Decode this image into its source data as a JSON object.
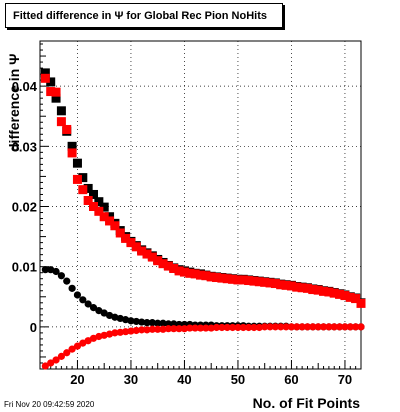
{
  "footer_timestamp": "Fri Nov 20 09:42:59 2020",
  "chart_data": {
    "type": "scatter",
    "title": "Fitted difference in  Ψ  for Global Rec Pion NoHits",
    "xlabel": "No. of Fit Points",
    "ylabel": "difference in  Ψ",
    "xlim": [
      13,
      73
    ],
    "ylim": [
      -0.007,
      0.0475
    ],
    "x_ticks": [
      "20",
      "30",
      "40",
      "50",
      "60",
      "70"
    ],
    "y_ticks": [
      "0",
      "0.01",
      "0.02",
      "0.03",
      "0.04"
    ],
    "grid": true,
    "x": [
      14,
      15,
      16,
      17,
      18,
      19,
      20,
      21,
      22,
      23,
      24,
      25,
      26,
      27,
      28,
      29,
      30,
      31,
      32,
      33,
      34,
      35,
      36,
      37,
      38,
      39,
      40,
      41,
      42,
      43,
      44,
      45,
      46,
      47,
      48,
      49,
      50,
      51,
      52,
      53,
      54,
      55,
      56,
      57,
      58,
      59,
      60,
      61,
      62,
      63,
      64,
      65,
      66,
      67,
      68,
      69,
      70,
      71,
      72,
      73
    ],
    "series": [
      {
        "color": "#000000",
        "values": [
          0.0422,
          0.0407,
          0.038,
          0.0359,
          0.0325,
          0.03,
          0.0272,
          0.0248,
          0.023,
          0.022,
          0.0208,
          0.0199,
          0.0183,
          0.0172,
          0.016,
          0.015,
          0.0142,
          0.0135,
          0.0128,
          0.0123,
          0.0118,
          0.0112,
          0.0107,
          0.0102,
          0.0098,
          0.0095,
          0.0093,
          0.0091,
          0.0089,
          0.0088,
          0.0086,
          0.0084,
          0.0083,
          0.0082,
          0.0081,
          0.008,
          0.0079,
          0.0079,
          0.0078,
          0.0077,
          0.0076,
          0.0075,
          0.0074,
          0.0073,
          0.0071,
          0.007,
          0.0069,
          0.0067,
          0.0066,
          0.0065,
          0.0063,
          0.0062,
          0.006,
          0.0059,
          0.0057,
          0.0055,
          0.0053,
          0.005,
          0.0048,
          0.004
        ]
      },
      {
        "color": "#ff0000",
        "values": [
          0.0413,
          0.0391,
          0.039,
          0.0341,
          0.0328,
          0.0289,
          0.0245,
          0.0228,
          0.021,
          0.02,
          0.0192,
          0.0183,
          0.0176,
          0.0168,
          0.0156,
          0.0147,
          0.014,
          0.0133,
          0.0126,
          0.0121,
          0.0116,
          0.011,
          0.0105,
          0.0101,
          0.0097,
          0.0093,
          0.0091,
          0.0089,
          0.0088,
          0.0086,
          0.0085,
          0.0083,
          0.0082,
          0.0081,
          0.008,
          0.0079,
          0.0078,
          0.0078,
          0.0077,
          0.0076,
          0.0075,
          0.0074,
          0.0073,
          0.0072,
          0.007,
          0.0069,
          0.0068,
          0.0066,
          0.0065,
          0.0064,
          0.0062,
          0.0061,
          0.0059,
          0.0058,
          0.0056,
          0.0054,
          0.0052,
          0.0049,
          0.0047,
          0.0039
        ]
      },
      {
        "color": "#000000",
        "values": [
          0.0095,
          0.0095,
          0.0092,
          0.0085,
          0.0076,
          0.0064,
          0.0053,
          0.0045,
          0.0038,
          0.0032,
          0.0027,
          0.0023,
          0.0019,
          0.0016,
          0.0014,
          0.0012,
          0.001,
          0.0009,
          0.0008,
          0.0007,
          0.0007,
          0.0006,
          0.0006,
          0.0005,
          0.0005,
          0.0004,
          0.0004,
          0.0004,
          0.0003,
          0.0003,
          0.0003,
          0.0003,
          0.0002,
          0.0002,
          0.0002,
          0.0002,
          0.0002,
          0.0002,
          0.0001,
          0.0001,
          0.0001,
          0.0001,
          0.0001,
          0.0001,
          0.0001,
          0.0001,
          0.0,
          0.0,
          0.0,
          0.0,
          0.0,
          0.0,
          0.0,
          0.0,
          0.0,
          0.0,
          0.0,
          0.0,
          0.0,
          0.0
        ]
      },
      {
        "color": "#ff0000",
        "values": [
          -0.0065,
          -0.006,
          -0.0055,
          -0.0049,
          -0.0043,
          -0.0037,
          -0.0032,
          -0.0027,
          -0.0023,
          -0.0019,
          -0.0016,
          -0.0014,
          -0.0012,
          -0.001,
          -0.0009,
          -0.0008,
          -0.0007,
          -0.0006,
          -0.0005,
          -0.0005,
          -0.0004,
          -0.0004,
          -0.0004,
          -0.0003,
          -0.0003,
          -0.0003,
          -0.0003,
          -0.0002,
          -0.0002,
          -0.0002,
          -0.0002,
          -0.0002,
          -0.0001,
          -0.0001,
          -0.0001,
          -0.0001,
          -0.0001,
          -0.0001,
          -0.0001,
          -0.0001,
          -0.0001,
          0.0,
          0.0,
          0.0,
          0.0,
          0.0,
          0.0,
          0.0,
          0.0,
          0.0,
          0.0,
          0.0,
          0.0,
          0.0,
          0.0,
          0.0,
          0.0,
          0.0,
          0.0,
          0.0
        ]
      }
    ]
  }
}
